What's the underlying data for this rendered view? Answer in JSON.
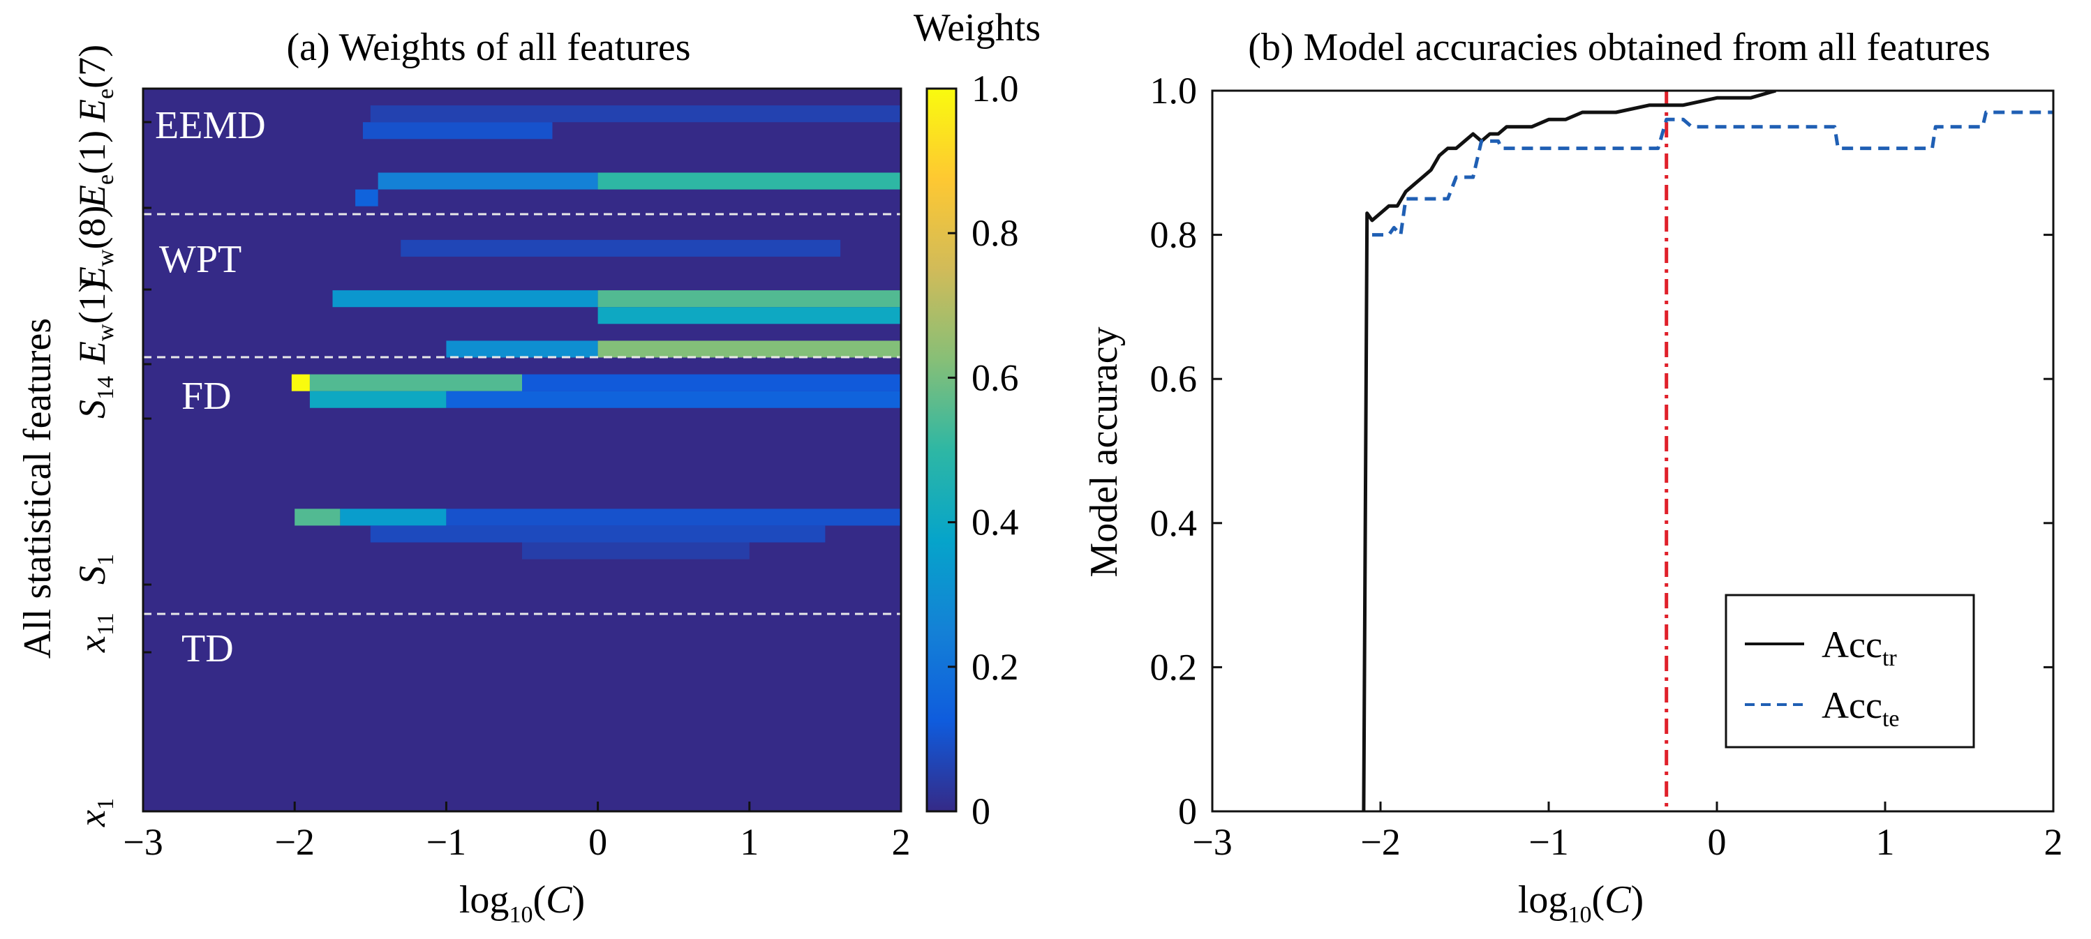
{
  "chart_data": [
    {
      "id": "a",
      "type": "heatmap",
      "title": "(a) Weights of all features",
      "xlabel": "log10(C)",
      "ylabel": "All statistical features",
      "xlim": [
        -3,
        2
      ],
      "xticks": [
        "−3",
        "−2",
        "−1",
        "0",
        "1",
        "2"
      ],
      "ytick_labels": [
        "x1",
        "x11",
        "S1",
        "S14",
        "Ew(1)",
        "Ew(8)",
        "Ee(1)",
        "Ee(7)"
      ],
      "regions": [
        "TD",
        "FD",
        "WPT",
        "EEMD"
      ],
      "colorbar": {
        "title": "Weights",
        "range": [
          0,
          1.0
        ],
        "ticks": [
          "0",
          "0.2",
          "0.4",
          "0.6",
          "0.8",
          "1.0"
        ],
        "colormap": [
          "#352a87",
          "#0f5cdd",
          "#1481d6",
          "#06a4ca",
          "#2eb7a4",
          "#87bf77",
          "#d1bb59",
          "#fec832",
          "#f9fb0e"
        ]
      },
      "n_rows": 43,
      "rows": [
        {
          "row": 1,
          "segments": [
            [
              -1.5,
              2.0,
              0.06
            ]
          ]
        },
        {
          "row": 2,
          "segments": [
            [
              -1.55,
              -0.3,
              0.1
            ]
          ]
        },
        {
          "row": 5,
          "segments": [
            [
              -1.45,
              0.0,
              0.25
            ],
            [
              0.0,
              2.0,
              0.5
            ]
          ]
        },
        {
          "row": 6,
          "segments": [
            [
              -1.6,
              -1.45,
              0.15
            ]
          ]
        },
        {
          "row": 9,
          "segments": [
            [
              -1.3,
              1.6,
              0.07
            ]
          ]
        },
        {
          "row": 12,
          "segments": [
            [
              -1.75,
              0.0,
              0.33
            ],
            [
              0.0,
              2.0,
              0.55
            ]
          ]
        },
        {
          "row": 13,
          "segments": [
            [
              0.0,
              2.0,
              0.4
            ]
          ]
        },
        {
          "row": 15,
          "segments": [
            [
              -1.0,
              0.0,
              0.3
            ],
            [
              0.0,
              2.0,
              0.62
            ]
          ]
        },
        {
          "row": 17,
          "segments": [
            [
              -2.02,
              -1.9,
              1.0
            ],
            [
              -1.9,
              -0.5,
              0.55
            ],
            [
              -0.5,
              2.0,
              0.12
            ]
          ]
        },
        {
          "row": 18,
          "segments": [
            [
              -1.9,
              -1.0,
              0.4
            ],
            [
              -1.0,
              2.0,
              0.15
            ]
          ]
        },
        {
          "row": 25,
          "segments": [
            [
              -2.0,
              -1.7,
              0.55
            ],
            [
              -1.7,
              -1.0,
              0.35
            ],
            [
              -1.0,
              2.0,
              0.1
            ]
          ]
        },
        {
          "row": 26,
          "segments": [
            [
              -1.5,
              1.5,
              0.08
            ]
          ]
        },
        {
          "row": 27,
          "segments": [
            [
              -0.5,
              1.0,
              0.05
            ]
          ]
        }
      ]
    },
    {
      "id": "b",
      "type": "line",
      "title": "(b) Model accuracies obtained from all features",
      "xlabel": "log10(C)",
      "ylabel": "Model accuracy",
      "xlim": [
        -3,
        2
      ],
      "ylim": [
        0,
        1.0
      ],
      "xticks": [
        "−3",
        "−2",
        "−1",
        "0",
        "1",
        "2"
      ],
      "yticks": [
        "0",
        "0.2",
        "0.4",
        "0.6",
        "0.8",
        "1.0"
      ],
      "series": [
        {
          "name": "Acc_tr",
          "legend_main": "Acc",
          "legend_sub": "tr",
          "color": "#111111",
          "style": "solid",
          "x": [
            -2.1,
            -2.08,
            -2.05,
            -2.0,
            -1.95,
            -1.9,
            -1.85,
            -1.8,
            -1.75,
            -1.7,
            -1.65,
            -1.6,
            -1.55,
            -1.5,
            -1.45,
            -1.4,
            -1.35,
            -1.3,
            -1.25,
            -1.2,
            -1.1,
            -1.0,
            -0.9,
            -0.8,
            -0.6,
            -0.4,
            -0.2,
            0.0,
            0.2,
            0.35
          ],
          "y": [
            0.0,
            0.83,
            0.82,
            0.83,
            0.84,
            0.84,
            0.86,
            0.87,
            0.88,
            0.89,
            0.91,
            0.92,
            0.92,
            0.93,
            0.94,
            0.93,
            0.94,
            0.94,
            0.95,
            0.95,
            0.95,
            0.96,
            0.96,
            0.97,
            0.97,
            0.98,
            0.98,
            0.99,
            0.99,
            1.0
          ]
        },
        {
          "name": "Acc_te",
          "legend_main": "Acc",
          "legend_sub": "te",
          "color": "#1f5fb4",
          "style": "dashed",
          "x": [
            -2.05,
            -1.95,
            -1.92,
            -1.88,
            -1.85,
            -1.6,
            -1.55,
            -1.45,
            -1.4,
            -1.3,
            -1.28,
            -0.35,
            -0.3,
            -0.2,
            -0.15,
            0.7,
            0.72,
            1.28,
            1.3,
            1.58,
            1.6,
            2.0
          ],
          "y": [
            0.8,
            0.8,
            0.81,
            0.8,
            0.85,
            0.85,
            0.88,
            0.88,
            0.93,
            0.93,
            0.92,
            0.92,
            0.96,
            0.96,
            0.95,
            0.95,
            0.92,
            0.92,
            0.95,
            0.95,
            0.97,
            0.97
          ]
        }
      ],
      "vline": {
        "x": -0.3,
        "color": "#e0202a",
        "style": "dash-dot"
      },
      "legend": {
        "position": "bottom-right"
      }
    }
  ]
}
